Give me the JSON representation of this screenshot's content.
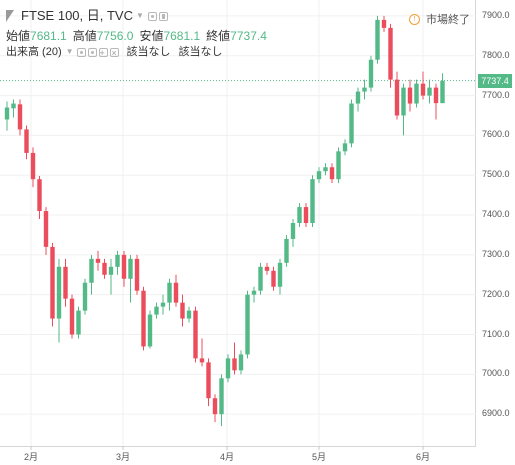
{
  "header": {
    "symbol": "FTSE 100, 日, TVC",
    "open_label": "始値",
    "open_value": "7681.1",
    "high_label": "高値",
    "high_value": "7756.0",
    "low_label": "安値",
    "low_value": "7681.1",
    "close_label": "終値",
    "close_value": "7737.4",
    "volume_label": "出来高 (20)",
    "volume_na_1": "該当なし",
    "volume_na_2": "該当なし",
    "market_status": "市場終了"
  },
  "colors": {
    "up": "#53b987",
    "down": "#eb4d5c",
    "last_price_line": "#53b987",
    "grid": "#f0f0f0"
  },
  "chart_data": {
    "type": "candlestick",
    "ylim": [
      6820,
      7940
    ],
    "y_ticks": [
      "6900.0",
      "7000.0",
      "7100.0",
      "7200.0",
      "7300.0",
      "7400.0",
      "7500.0",
      "7600.0",
      "7700.0",
      "7800.0",
      "7900.0"
    ],
    "x_ticks": [
      "2月",
      "3月",
      "4月",
      "5月",
      "6月"
    ],
    "last_price": "7737.4",
    "candles": [
      [
        7640,
        7685,
        7612,
        7670
      ],
      [
        7668,
        7690,
        7645,
        7680
      ],
      [
        7678,
        7690,
        7600,
        7615
      ],
      [
        7615,
        7625,
        7540,
        7556
      ],
      [
        7556,
        7570,
        7470,
        7490
      ],
      [
        7490,
        7498,
        7390,
        7410
      ],
      [
        7410,
        7420,
        7300,
        7320
      ],
      [
        7320,
        7330,
        7120,
        7140
      ],
      [
        7140,
        7290,
        7080,
        7270
      ],
      [
        7270,
        7290,
        7170,
        7190
      ],
      [
        7190,
        7200,
        7090,
        7100
      ],
      [
        7100,
        7170,
        7090,
        7160
      ],
      [
        7160,
        7240,
        7150,
        7230
      ],
      [
        7230,
        7300,
        7200,
        7290
      ],
      [
        7290,
        7310,
        7260,
        7280
      ],
      [
        7280,
        7290,
        7240,
        7250
      ],
      [
        7250,
        7290,
        7200,
        7270
      ],
      [
        7270,
        7310,
        7250,
        7300
      ],
      [
        7300,
        7310,
        7220,
        7240
      ],
      [
        7240,
        7300,
        7180,
        7290
      ],
      [
        7290,
        7300,
        7200,
        7210
      ],
      [
        7210,
        7220,
        7060,
        7070
      ],
      [
        7070,
        7160,
        7065,
        7150
      ],
      [
        7150,
        7180,
        7140,
        7170
      ],
      [
        7170,
        7200,
        7150,
        7180
      ],
      [
        7180,
        7240,
        7160,
        7230
      ],
      [
        7230,
        7250,
        7170,
        7180
      ],
      [
        7180,
        7200,
        7120,
        7140
      ],
      [
        7140,
        7170,
        7130,
        7160
      ],
      [
        7160,
        7170,
        7030,
        7040
      ],
      [
        7040,
        7090,
        7020,
        7030
      ],
      [
        7030,
        7040,
        6920,
        6940
      ],
      [
        6940,
        6950,
        6880,
        6900
      ],
      [
        6900,
        7000,
        6870,
        6990
      ],
      [
        6990,
        7050,
        6980,
        7040
      ],
      [
        7040,
        7080,
        7000,
        7010
      ],
      [
        7010,
        7060,
        7000,
        7050
      ],
      [
        7050,
        7210,
        7040,
        7200
      ],
      [
        7200,
        7220,
        7180,
        7210
      ],
      [
        7210,
        7280,
        7200,
        7270
      ],
      [
        7270,
        7280,
        7250,
        7260
      ],
      [
        7260,
        7270,
        7210,
        7220
      ],
      [
        7220,
        7290,
        7200,
        7280
      ],
      [
        7280,
        7350,
        7270,
        7340
      ],
      [
        7340,
        7390,
        7320,
        7380
      ],
      [
        7380,
        7430,
        7370,
        7420
      ],
      [
        7420,
        7430,
        7370,
        7380
      ],
      [
        7380,
        7500,
        7370,
        7490
      ],
      [
        7490,
        7520,
        7480,
        7510
      ],
      [
        7510,
        7530,
        7500,
        7520
      ],
      [
        7520,
        7530,
        7480,
        7490
      ],
      [
        7490,
        7570,
        7480,
        7560
      ],
      [
        7560,
        7590,
        7550,
        7580
      ],
      [
        7580,
        7690,
        7570,
        7680
      ],
      [
        7680,
        7720,
        7660,
        7710
      ],
      [
        7710,
        7740,
        7690,
        7720
      ],
      [
        7720,
        7800,
        7710,
        7790
      ],
      [
        7790,
        7900,
        7780,
        7890
      ],
      [
        7890,
        7900,
        7860,
        7870
      ],
      [
        7870,
        7880,
        7720,
        7740
      ],
      [
        7740,
        7760,
        7640,
        7650
      ],
      [
        7650,
        7730,
        7600,
        7720
      ],
      [
        7720,
        7740,
        7660,
        7680
      ],
      [
        7680,
        7740,
        7670,
        7730
      ],
      [
        7730,
        7760,
        7690,
        7700
      ],
      [
        7700,
        7740,
        7680,
        7720
      ],
      [
        7720,
        7730,
        7640,
        7681
      ],
      [
        7681,
        7756,
        7681,
        7737
      ]
    ]
  }
}
